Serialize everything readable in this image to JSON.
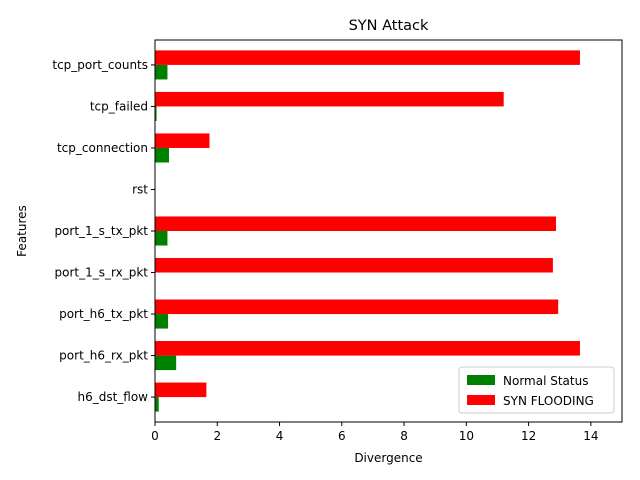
{
  "chart_data": {
    "type": "bar",
    "orientation": "horizontal",
    "title": "SYN Attack",
    "xlabel": "Divergence",
    "ylabel": "Features",
    "xlim": [
      0,
      15
    ],
    "x_ticks": [
      0,
      2,
      4,
      6,
      8,
      10,
      12,
      14
    ],
    "categories": [
      "h6_dst_flow",
      "port_h6_rx_pkt",
      "port_h6_tx_pkt",
      "port_1_s_rx_pkt",
      "port_1_s_tx_pkt",
      "rst",
      "tcp_connection",
      "tcp_failed",
      "tcp_port_counts"
    ],
    "series": [
      {
        "name": "Normal Status",
        "color": "#008000",
        "values": [
          0.12,
          0.68,
          0.42,
          0.0,
          0.4,
          0.0,
          0.45,
          0.05,
          0.4
        ]
      },
      {
        "name": "SYN FLOODING",
        "color": "#ff0000",
        "values": [
          1.65,
          13.65,
          12.95,
          12.78,
          12.88,
          0.0,
          1.75,
          11.2,
          13.65
        ]
      }
    ],
    "legend_position": "lower-right",
    "grid": false
  }
}
